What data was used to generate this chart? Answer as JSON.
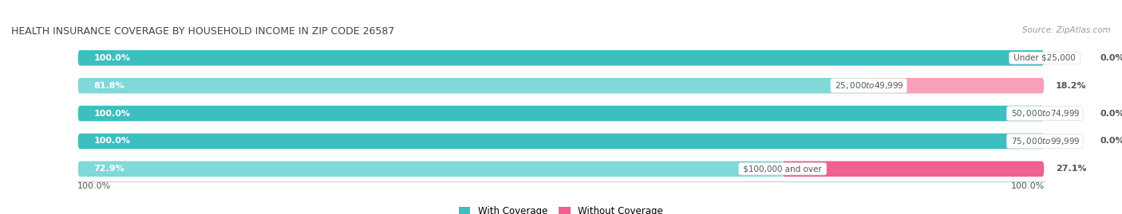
{
  "title": "HEALTH INSURANCE COVERAGE BY HOUSEHOLD INCOME IN ZIP CODE 26587",
  "source": "Source: ZipAtlas.com",
  "categories": [
    "Under $25,000",
    "$25,000 to $49,999",
    "$50,000 to $74,999",
    "$75,000 to $99,999",
    "$100,000 and over"
  ],
  "with_coverage": [
    100.0,
    81.8,
    100.0,
    100.0,
    72.9
  ],
  "without_coverage": [
    0.0,
    18.2,
    0.0,
    0.0,
    27.1
  ],
  "color_with": "#3DBFBF",
  "color_without": "#F06090",
  "color_with_light": "#80D8D8",
  "color_without_light": "#F8A0B8",
  "bar_height": 0.62,
  "background_color": "#FFFFFF",
  "bar_background": "#E0E0E0",
  "legend_labels": [
    "With Coverage",
    "Without Coverage"
  ],
  "x_axis_left_label": "100.0%",
  "x_axis_right_label": "100.0%"
}
